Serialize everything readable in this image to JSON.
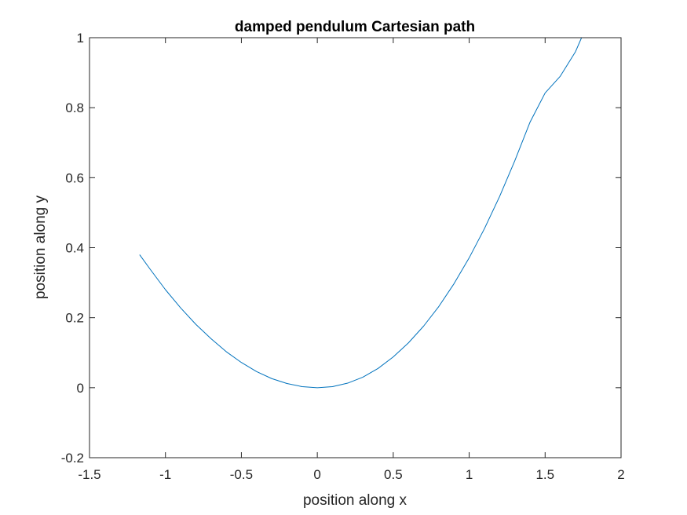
{
  "chart_data": {
    "type": "line",
    "title": "damped pendulum Cartesian path",
    "xlabel": "position along x",
    "ylabel": "position along y",
    "xlim": [
      -1.5,
      2
    ],
    "ylim": [
      -0.2,
      1
    ],
    "xticks": [
      -1.5,
      -1,
      -0.5,
      0,
      0.5,
      1,
      1.5,
      2
    ],
    "xtick_labels": [
      "-1.5",
      "-1",
      "-0.5",
      "0",
      "0.5",
      "1",
      "1.5",
      "2"
    ],
    "yticks": [
      -0.2,
      0,
      0.2,
      0.4,
      0.6,
      0.8,
      1
    ],
    "ytick_labels": [
      "-0.2",
      "0",
      "0.2",
      "0.4",
      "0.6",
      "0.8",
      "1"
    ],
    "grid": false,
    "box": true,
    "colors": {
      "line": "#0072bd",
      "axes": "#262626",
      "background": "#ffffff"
    },
    "series": [
      {
        "x": [
          -1.17,
          -1.1,
          -1.0,
          -0.9,
          -0.8,
          -0.7,
          -0.6,
          -0.5,
          -0.4,
          -0.3,
          -0.2,
          -0.1,
          0.0,
          0.1,
          0.2,
          0.3,
          0.4,
          0.5,
          0.6,
          0.7,
          0.8,
          0.9,
          1.0,
          1.1,
          1.2,
          1.3,
          1.4,
          1.5,
          1.6,
          1.7,
          1.74
        ],
        "y": [
          0.38,
          0.338,
          0.28,
          0.228,
          0.181,
          0.14,
          0.103,
          0.072,
          0.046,
          0.026,
          0.012,
          0.003,
          0.0,
          0.003,
          0.013,
          0.03,
          0.055,
          0.088,
          0.128,
          0.176,
          0.232,
          0.297,
          0.371,
          0.454,
          0.546,
          0.648,
          0.758,
          0.842,
          0.89,
          0.96,
          1.0
        ]
      }
    ]
  }
}
